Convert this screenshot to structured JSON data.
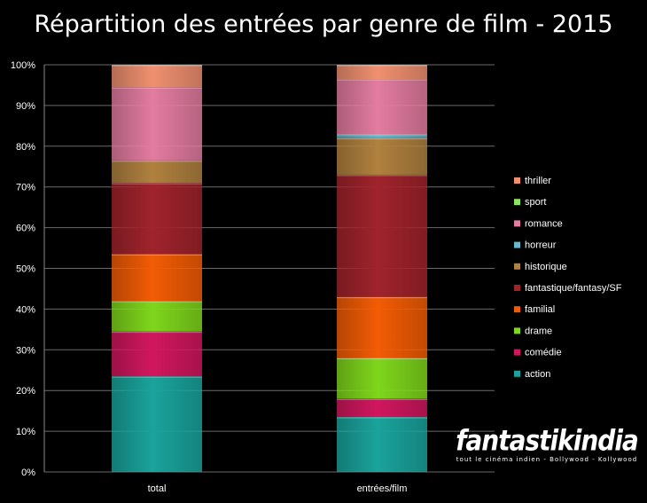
{
  "chart_data": {
    "type": "bar",
    "stacked": "percent",
    "title": "Répartition des entrées par genre de film - 2015",
    "categories": [
      "total",
      "entrées/film"
    ],
    "ylim": [
      0,
      100
    ],
    "yticks": [
      "0%",
      "10%",
      "20%",
      "30%",
      "40%",
      "50%",
      "60%",
      "70%",
      "80%",
      "90%",
      "100%"
    ],
    "grid": "horizontal",
    "legend_position": "right",
    "series": [
      {
        "name": "action",
        "color": "#1aa39c",
        "values": [
          23.5,
          13.5
        ]
      },
      {
        "name": "comédie",
        "color": "#d1175e",
        "values": [
          11.0,
          4.5
        ]
      },
      {
        "name": "drame",
        "color": "#7fd61c",
        "values": [
          7.5,
          10.0
        ]
      },
      {
        "name": "familial",
        "color": "#f25c05",
        "values": [
          11.5,
          15.0
        ]
      },
      {
        "name": "fantastique/fantasy/SF",
        "color": "#a0232c",
        "values": [
          17.5,
          30.0
        ]
      },
      {
        "name": "historique",
        "color": "#b0813f",
        "values": [
          5.5,
          9.0
        ]
      },
      {
        "name": "horreur",
        "color": "#68b7cd",
        "values": [
          0.0,
          1.0
        ]
      },
      {
        "name": "romance",
        "color": "#e37ca0",
        "values": [
          18.0,
          13.5
        ]
      },
      {
        "name": "sport",
        "color": "#8fe35a",
        "values": [
          0.0,
          0.0
        ]
      },
      {
        "name": "thriller",
        "color": "#f09070",
        "values": [
          5.5,
          3.5
        ]
      }
    ]
  },
  "logo": {
    "main": "fantastikindia",
    "sub": "tout le cinéma indien - Bollywood - Kollywood"
  }
}
